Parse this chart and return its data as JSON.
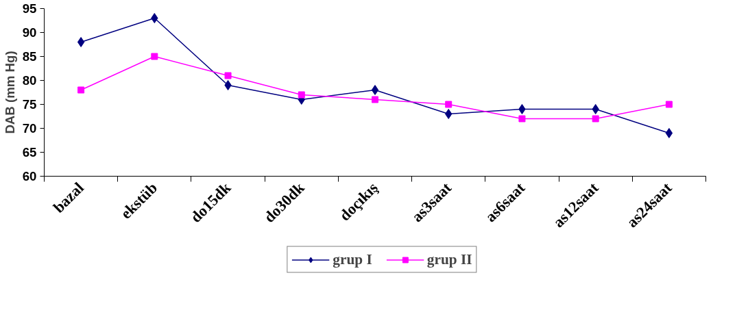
{
  "chart_data": {
    "type": "line",
    "ylabel": "DAB (mm Hg)",
    "categories": [
      "bazal",
      "ekstüb",
      "do15dk",
      "do30dk",
      "doçıkış",
      "as3saat",
      "as6saat",
      "as12saat",
      "as24saat"
    ],
    "series": [
      {
        "name": "grup I",
        "color": "#000080",
        "marker": "diamond",
        "values": [
          88,
          93,
          79,
          76,
          78,
          73,
          74,
          74,
          69
        ]
      },
      {
        "name": "grup II",
        "color": "#ff00ff",
        "marker": "square",
        "values": [
          78,
          85,
          81,
          77,
          76,
          75,
          72,
          72,
          75
        ]
      }
    ],
    "ylim": [
      60,
      95
    ],
    "yticks": [
      60,
      65,
      70,
      75,
      80,
      85,
      90,
      95
    ],
    "grid": false,
    "legend": "bottom",
    "line_style": "solid"
  }
}
